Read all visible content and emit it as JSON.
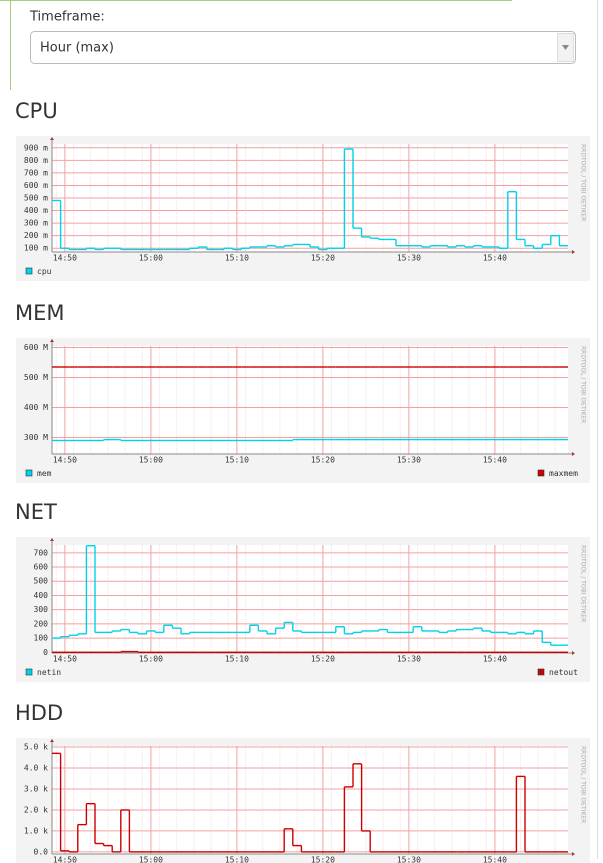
{
  "timeframe_label": "Timeframe:",
  "timeframe_value": "Hour (max)",
  "chart_data": [
    {
      "type": "line",
      "title": "CPU",
      "watermark": "RRDTOOL / TOBI OETIKER",
      "categories": [
        null,
        "14:50",
        null,
        null,
        null,
        null,
        null,
        null,
        null,
        null,
        null,
        "15:00",
        null,
        null,
        null,
        null,
        null,
        null,
        null,
        null,
        null,
        "15:10",
        null,
        null,
        null,
        null,
        null,
        null,
        null,
        null,
        null,
        "15:20",
        null,
        null,
        null,
        null,
        null,
        null,
        null,
        null,
        null,
        "15:30",
        null,
        null,
        null,
        null,
        null,
        null,
        null,
        null,
        null,
        "15:40",
        null,
        null,
        null,
        null,
        null,
        null,
        null,
        null
      ],
      "ylim": [
        70,
        930
      ],
      "yticks": [
        {
          "value": 100,
          "label": "100 m"
        },
        {
          "value": 200,
          "label": "200 m"
        },
        {
          "value": 300,
          "label": "300 m"
        },
        {
          "value": 400,
          "label": "400 m"
        },
        {
          "value": 500,
          "label": "500 m"
        },
        {
          "value": 600,
          "label": "600 m"
        },
        {
          "value": 700,
          "label": "700 m"
        },
        {
          "value": 800,
          "label": "800 m"
        },
        {
          "value": 900,
          "label": "900 m"
        }
      ],
      "grid": true,
      "series": [
        {
          "name": "cpu",
          "color": "#00d2ea",
          "values": [
            480,
            100,
            90,
            90,
            100,
            90,
            100,
            100,
            90,
            90,
            90,
            90,
            90,
            90,
            90,
            90,
            100,
            110,
            90,
            90,
            100,
            90,
            100,
            110,
            110,
            120,
            110,
            120,
            130,
            130,
            110,
            90,
            100,
            100,
            890,
            260,
            190,
            180,
            170,
            170,
            120,
            120,
            120,
            110,
            120,
            120,
            110,
            120,
            110,
            120,
            110,
            110,
            100,
            550,
            170,
            120,
            100,
            130,
            200,
            120
          ]
        }
      ]
    },
    {
      "type": "line",
      "title": "MEM",
      "watermark": "RRDTOOL / TOBI OETIKER",
      "categories": [
        null,
        "14:50",
        null,
        null,
        null,
        null,
        null,
        null,
        null,
        null,
        null,
        "15:00",
        null,
        null,
        null,
        null,
        null,
        null,
        null,
        null,
        null,
        "15:10",
        null,
        null,
        null,
        null,
        null,
        null,
        null,
        null,
        null,
        "15:20",
        null,
        null,
        null,
        null,
        null,
        null,
        null,
        null,
        null,
        "15:30",
        null,
        null,
        null,
        null,
        null,
        null,
        null,
        null,
        null,
        "15:40",
        null,
        null,
        null,
        null,
        null,
        null,
        null,
        null
      ],
      "ylim": [
        245,
        605
      ],
      "yticks": [
        {
          "value": 300,
          "label": "300 M"
        },
        {
          "value": 400,
          "label": "400 M"
        },
        {
          "value": 500,
          "label": "500 M"
        },
        {
          "value": 600,
          "label": "600 M"
        }
      ],
      "grid": true,
      "series": [
        {
          "name": "mem",
          "color": "#00d2ea",
          "values": [
            290,
            290,
            290,
            290,
            290,
            290,
            293,
            293,
            290,
            290,
            290,
            290,
            290,
            290,
            290,
            290,
            290,
            290,
            290,
            290,
            290,
            290,
            290,
            290,
            290,
            290,
            290,
            290,
            293,
            293,
            293,
            293,
            293,
            293,
            293,
            293,
            293,
            293,
            293,
            293,
            293,
            293,
            293,
            293,
            293,
            293,
            293,
            293,
            293,
            293,
            293,
            293,
            293,
            293,
            293,
            293,
            293,
            293,
            293,
            293
          ]
        },
        {
          "name": "maxmem",
          "color": "#cc0000",
          "values": [
            535,
            535,
            535,
            535,
            535,
            535,
            535,
            535,
            535,
            535,
            535,
            535,
            535,
            535,
            535,
            535,
            535,
            535,
            535,
            535,
            535,
            535,
            535,
            535,
            535,
            535,
            535,
            535,
            535,
            535,
            535,
            535,
            535,
            535,
            535,
            535,
            535,
            535,
            535,
            535,
            535,
            535,
            535,
            535,
            535,
            535,
            535,
            535,
            535,
            535,
            535,
            535,
            535,
            535,
            535,
            535,
            535,
            535,
            535,
            535
          ]
        }
      ]
    },
    {
      "type": "line",
      "title": "NET",
      "watermark": "RRDTOOL / TOBI OETIKER",
      "categories": [
        null,
        "14:50",
        null,
        null,
        null,
        null,
        null,
        null,
        null,
        null,
        null,
        "15:00",
        null,
        null,
        null,
        null,
        null,
        null,
        null,
        null,
        null,
        "15:10",
        null,
        null,
        null,
        null,
        null,
        null,
        null,
        null,
        null,
        "15:20",
        null,
        null,
        null,
        null,
        null,
        null,
        null,
        null,
        null,
        "15:30",
        null,
        null,
        null,
        null,
        null,
        null,
        null,
        null,
        null,
        "15:40",
        null,
        null,
        null,
        null,
        null,
        null,
        null,
        null
      ],
      "ylim": [
        -5,
        755
      ],
      "yticks": [
        0,
        100,
        200,
        300,
        400,
        500,
        600,
        700
      ],
      "grid": true,
      "series": [
        {
          "name": "netin",
          "color": "#00d2ea",
          "values": [
            100,
            110,
            120,
            130,
            750,
            140,
            140,
            150,
            160,
            140,
            130,
            150,
            140,
            190,
            170,
            130,
            140,
            140,
            140,
            140,
            140,
            140,
            140,
            190,
            150,
            130,
            170,
            210,
            150,
            140,
            140,
            140,
            140,
            180,
            130,
            140,
            150,
            150,
            160,
            140,
            140,
            140,
            180,
            150,
            150,
            140,
            150,
            160,
            160,
            170,
            150,
            140,
            140,
            130,
            140,
            130,
            150,
            70,
            50,
            50
          ]
        },
        {
          "name": "netout",
          "color": "#cc0000",
          "values": [
            0,
            0,
            0,
            0,
            0,
            0,
            0,
            0,
            5,
            5,
            0,
            0,
            0,
            0,
            0,
            0,
            0,
            0,
            0,
            0,
            0,
            0,
            0,
            0,
            0,
            0,
            0,
            0,
            0,
            0,
            0,
            0,
            0,
            0,
            0,
            0,
            0,
            0,
            0,
            0,
            0,
            0,
            0,
            0,
            0,
            0,
            0,
            0,
            0,
            0,
            0,
            0,
            0,
            0,
            0,
            0,
            0,
            0,
            0,
            0
          ]
        }
      ]
    },
    {
      "type": "line",
      "title": "HDD",
      "watermark": "RRDTOOL / TOBI OETIKER",
      "categories": [
        null,
        "14:50",
        null,
        null,
        null,
        null,
        null,
        null,
        null,
        null,
        null,
        "15:00",
        null,
        null,
        null,
        null,
        null,
        null,
        null,
        null,
        null,
        "15:10",
        null,
        null,
        null,
        null,
        null,
        null,
        null,
        null,
        null,
        "15:20",
        null,
        null,
        null,
        null,
        null,
        null,
        null,
        null,
        null,
        "15:30",
        null,
        null,
        null,
        null,
        null,
        null,
        null,
        null,
        null,
        "15:40",
        null,
        null,
        null,
        null,
        null,
        null,
        null,
        null
      ],
      "ylim": [
        -100,
        5050
      ],
      "yticks": [
        {
          "value": 0,
          "label": "0.0"
        },
        {
          "value": 1000,
          "label": "1.0 k"
        },
        {
          "value": 2000,
          "label": "2.0 k"
        },
        {
          "value": 3000,
          "label": "3.0 k"
        },
        {
          "value": 4000,
          "label": "4.0 k"
        },
        {
          "value": 5000,
          "label": "5.0 k"
        }
      ],
      "grid": true,
      "series": [
        {
          "color": "#cc0000",
          "values": [
            4700,
            50,
            0,
            1300,
            2300,
            400,
            300,
            0,
            2000,
            0,
            0,
            0,
            0,
            0,
            0,
            0,
            0,
            0,
            0,
            0,
            0,
            0,
            0,
            0,
            0,
            0,
            0,
            1100,
            300,
            0,
            0,
            0,
            0,
            0,
            3100,
            4200,
            1000,
            0,
            0,
            0,
            0,
            0,
            0,
            0,
            0,
            0,
            0,
            0,
            0,
            0,
            0,
            0,
            0,
            0,
            3600,
            0,
            0,
            0,
            0,
            0
          ]
        }
      ]
    }
  ]
}
